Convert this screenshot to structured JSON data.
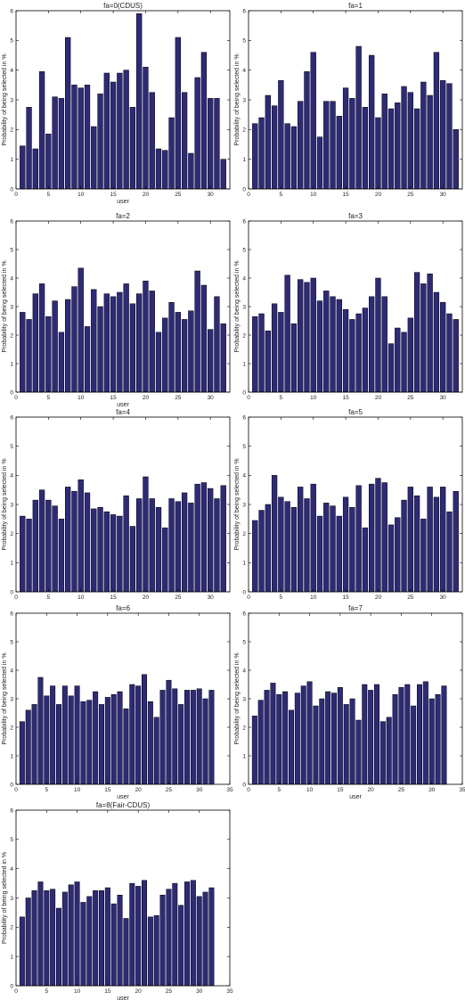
{
  "chart_data": [
    {
      "type": "bar",
      "title": "fa=0(CDUS)",
      "xlabel": "user",
      "ylabel": "Probability of being selected in %",
      "xlim": [
        0,
        33
      ],
      "ylim": [
        0,
        6
      ],
      "xticks": [
        0,
        5,
        10,
        15,
        20,
        25,
        30
      ],
      "yticks": [
        0,
        1,
        2,
        3,
        4,
        5,
        6
      ],
      "grid": false,
      "bar_color": "#2e2a7a",
      "x": [
        1,
        2,
        3,
        4,
        5,
        6,
        7,
        8,
        9,
        10,
        11,
        12,
        13,
        14,
        15,
        16,
        17,
        18,
        19,
        20,
        21,
        22,
        23,
        24,
        25,
        26,
        27,
        28,
        29,
        30,
        31,
        32
      ],
      "values": [
        1.45,
        2.75,
        1.35,
        3.95,
        1.85,
        3.1,
        3.05,
        5.1,
        3.5,
        3.4,
        3.5,
        2.1,
        3.2,
        3.9,
        3.6,
        3.9,
        4.0,
        2.75,
        5.9,
        4.1,
        3.25,
        1.35,
        1.3,
        2.4,
        5.1,
        3.25,
        1.2,
        3.75,
        4.6,
        3.05,
        3.05,
        1.0
      ]
    },
    {
      "type": "bar",
      "title": "fa=1",
      "xlabel": "",
      "ylabel": "Probability of being selected in %",
      "xlim": [
        0,
        33
      ],
      "ylim": [
        0,
        6
      ],
      "xticks": [
        0,
        5,
        10,
        15,
        20,
        25,
        30
      ],
      "yticks": [
        0,
        1,
        2,
        3,
        4,
        5,
        6
      ],
      "grid": false,
      "bar_color": "#2e2a7a",
      "x": [
        1,
        2,
        3,
        4,
        5,
        6,
        7,
        8,
        9,
        10,
        11,
        12,
        13,
        14,
        15,
        16,
        17,
        18,
        19,
        20,
        21,
        22,
        23,
        24,
        25,
        26,
        27,
        28,
        29,
        30,
        31,
        32
      ],
      "values": [
        2.2,
        2.4,
        3.15,
        2.8,
        3.65,
        2.2,
        2.1,
        2.95,
        3.95,
        4.6,
        1.75,
        2.95,
        2.95,
        2.45,
        3.4,
        3.05,
        4.8,
        2.75,
        4.5,
        2.4,
        3.2,
        2.7,
        2.9,
        3.45,
        3.25,
        2.7,
        3.6,
        3.15,
        4.6,
        3.65,
        3.55,
        2.0
      ]
    },
    {
      "type": "bar",
      "title": "fa=2",
      "xlabel": "user",
      "ylabel": "Probability of being selected in %",
      "xlim": [
        0,
        33
      ],
      "ylim": [
        0,
        6
      ],
      "xticks": [
        0,
        5,
        10,
        15,
        20,
        25,
        30
      ],
      "yticks": [
        0,
        1,
        2,
        3,
        4,
        5,
        6
      ],
      "grid": false,
      "bar_color": "#2e2a7a",
      "x": [
        1,
        2,
        3,
        4,
        5,
        6,
        7,
        8,
        9,
        10,
        11,
        12,
        13,
        14,
        15,
        16,
        17,
        18,
        19,
        20,
        21,
        22,
        23,
        24,
        25,
        26,
        27,
        28,
        29,
        30,
        31,
        32
      ],
      "values": [
        2.8,
        2.55,
        3.45,
        3.8,
        2.65,
        3.2,
        2.1,
        3.25,
        3.7,
        4.35,
        2.3,
        3.6,
        3.0,
        3.45,
        3.35,
        3.5,
        3.8,
        3.1,
        3.45,
        3.9,
        3.55,
        2.1,
        2.6,
        3.15,
        2.8,
        2.55,
        2.85,
        4.25,
        3.75,
        2.2,
        3.35,
        2.4
      ]
    },
    {
      "type": "bar",
      "title": "fa=3",
      "xlabel": "",
      "ylabel": "Probability of being selected in %",
      "xlim": [
        0,
        33
      ],
      "ylim": [
        0,
        6
      ],
      "xticks": [
        0,
        5,
        10,
        15,
        20,
        25,
        30
      ],
      "yticks": [
        0,
        1,
        2,
        3,
        4,
        5,
        6
      ],
      "grid": false,
      "bar_color": "#2e2a7a",
      "x": [
        1,
        2,
        3,
        4,
        5,
        6,
        7,
        8,
        9,
        10,
        11,
        12,
        13,
        14,
        15,
        16,
        17,
        18,
        19,
        20,
        21,
        22,
        23,
        24,
        25,
        26,
        27,
        28,
        29,
        30,
        31,
        32
      ],
      "values": [
        2.65,
        2.75,
        2.15,
        3.1,
        2.8,
        4.1,
        2.4,
        3.95,
        3.85,
        4.0,
        3.2,
        3.55,
        3.35,
        3.25,
        2.9,
        2.55,
        2.75,
        2.95,
        3.35,
        4.0,
        3.35,
        1.7,
        2.25,
        2.1,
        2.6,
        4.2,
        3.8,
        4.15,
        3.5,
        3.15,
        2.75,
        2.55
      ]
    },
    {
      "type": "bar",
      "title": "fa=4",
      "xlabel": "",
      "ylabel": "Probability of being selected in %",
      "xlim": [
        0,
        33
      ],
      "ylim": [
        0,
        6
      ],
      "xticks": [
        0,
        5,
        10,
        15,
        20,
        25,
        30
      ],
      "yticks": [
        0,
        1,
        2,
        3,
        4,
        5,
        6
      ],
      "grid": false,
      "bar_color": "#2e2a7a",
      "x": [
        1,
        2,
        3,
        4,
        5,
        6,
        7,
        8,
        9,
        10,
        11,
        12,
        13,
        14,
        15,
        16,
        17,
        18,
        19,
        20,
        21,
        22,
        23,
        24,
        25,
        26,
        27,
        28,
        29,
        30,
        31,
        32
      ],
      "values": [
        2.6,
        2.5,
        3.15,
        3.5,
        3.15,
        2.95,
        2.5,
        3.6,
        3.45,
        3.85,
        3.4,
        2.85,
        2.9,
        2.75,
        2.65,
        2.6,
        3.3,
        2.25,
        3.2,
        3.95,
        3.2,
        2.9,
        2.2,
        3.2,
        3.1,
        3.4,
        3.05,
        3.7,
        3.75,
        3.55,
        3.2,
        3.65
      ]
    },
    {
      "type": "bar",
      "title": "fa=5",
      "xlabel": "",
      "ylabel": "Probability of being selected in %",
      "xlim": [
        0,
        33
      ],
      "ylim": [
        0,
        6
      ],
      "xticks": [
        0,
        5,
        10,
        15,
        20,
        25,
        30
      ],
      "yticks": [
        0,
        1,
        2,
        3,
        4,
        5,
        6
      ],
      "grid": false,
      "bar_color": "#2e2a7a",
      "x": [
        1,
        2,
        3,
        4,
        5,
        6,
        7,
        8,
        9,
        10,
        11,
        12,
        13,
        14,
        15,
        16,
        17,
        18,
        19,
        20,
        21,
        22,
        23,
        24,
        25,
        26,
        27,
        28,
        29,
        30,
        31,
        32
      ],
      "values": [
        2.45,
        2.8,
        3.0,
        4.0,
        3.25,
        3.1,
        2.9,
        3.6,
        3.2,
        3.7,
        2.6,
        3.05,
        2.95,
        2.6,
        3.25,
        2.9,
        3.65,
        2.2,
        3.7,
        3.9,
        3.75,
        2.3,
        2.55,
        3.15,
        3.6,
        3.3,
        2.5,
        3.6,
        3.25,
        3.6,
        2.75,
        3.45
      ]
    },
    {
      "type": "bar",
      "title": "fa=6",
      "xlabel": "user",
      "ylabel": "Probability of being selected in %",
      "xlim": [
        0,
        35
      ],
      "ylim": [
        0,
        6
      ],
      "xticks": [
        0,
        5,
        10,
        15,
        20,
        25,
        30,
        35
      ],
      "yticks": [
        0,
        1,
        2,
        3,
        4,
        5,
        6
      ],
      "grid": false,
      "bar_color": "#2e2a7a",
      "x": [
        1,
        2,
        3,
        4,
        5,
        6,
        7,
        8,
        9,
        10,
        11,
        12,
        13,
        14,
        15,
        16,
        17,
        18,
        19,
        20,
        21,
        22,
        23,
        24,
        25,
        26,
        27,
        28,
        29,
        30,
        31,
        32
      ],
      "values": [
        2.2,
        2.6,
        2.8,
        3.75,
        3.1,
        3.45,
        2.8,
        3.45,
        3.1,
        3.45,
        2.9,
        2.95,
        3.25,
        2.8,
        3.05,
        3.15,
        3.25,
        2.65,
        3.5,
        3.45,
        3.85,
        2.9,
        2.35,
        3.3,
        3.65,
        3.35,
        2.8,
        3.3,
        3.3,
        3.35,
        3.0,
        3.3
      ]
    },
    {
      "type": "bar",
      "title": "fa=7",
      "xlabel": "user",
      "ylabel": "Probability of being selected in %",
      "xlim": [
        0,
        35
      ],
      "ylim": [
        0,
        6
      ],
      "xticks": [
        0,
        5,
        10,
        15,
        20,
        25,
        30,
        35
      ],
      "yticks": [
        0,
        1,
        2,
        3,
        4,
        5,
        6
      ],
      "grid": false,
      "bar_color": "#2e2a7a",
      "x": [
        1,
        2,
        3,
        4,
        5,
        6,
        7,
        8,
        9,
        10,
        11,
        12,
        13,
        14,
        15,
        16,
        17,
        18,
        19,
        20,
        21,
        22,
        23,
        24,
        25,
        26,
        27,
        28,
        29,
        30,
        31,
        32
      ],
      "values": [
        2.4,
        2.95,
        3.3,
        3.55,
        3.15,
        3.25,
        2.6,
        3.2,
        3.45,
        3.6,
        2.75,
        3.0,
        3.25,
        3.2,
        3.4,
        2.8,
        3.0,
        2.25,
        3.5,
        3.3,
        3.5,
        2.2,
        2.35,
        3.15,
        3.4,
        3.5,
        2.75,
        3.5,
        3.6,
        3.0,
        3.15,
        3.45
      ]
    },
    {
      "type": "bar",
      "title": "fa=8(Fair-CDUS)",
      "xlabel": "user",
      "ylabel": "Probability of being selected in %",
      "xlim": [
        0,
        35
      ],
      "ylim": [
        0,
        6
      ],
      "xticks": [
        0,
        5,
        10,
        15,
        20,
        25,
        30,
        35
      ],
      "yticks": [
        0,
        1,
        2,
        3,
        4,
        5,
        6
      ],
      "grid": false,
      "bar_color": "#2e2a7a",
      "x": [
        1,
        2,
        3,
        4,
        5,
        6,
        7,
        8,
        9,
        10,
        11,
        12,
        13,
        14,
        15,
        16,
        17,
        18,
        19,
        20,
        21,
        22,
        23,
        24,
        25,
        26,
        27,
        28,
        29,
        30,
        31,
        32
      ],
      "values": [
        2.35,
        3.0,
        3.25,
        3.55,
        3.25,
        3.3,
        2.65,
        3.2,
        3.45,
        3.55,
        2.85,
        3.05,
        3.25,
        3.25,
        3.35,
        2.8,
        3.1,
        2.3,
        3.5,
        3.4,
        3.6,
        2.35,
        2.4,
        3.1,
        3.3,
        3.5,
        2.75,
        3.55,
        3.6,
        3.05,
        3.2,
        3.35
      ]
    }
  ]
}
